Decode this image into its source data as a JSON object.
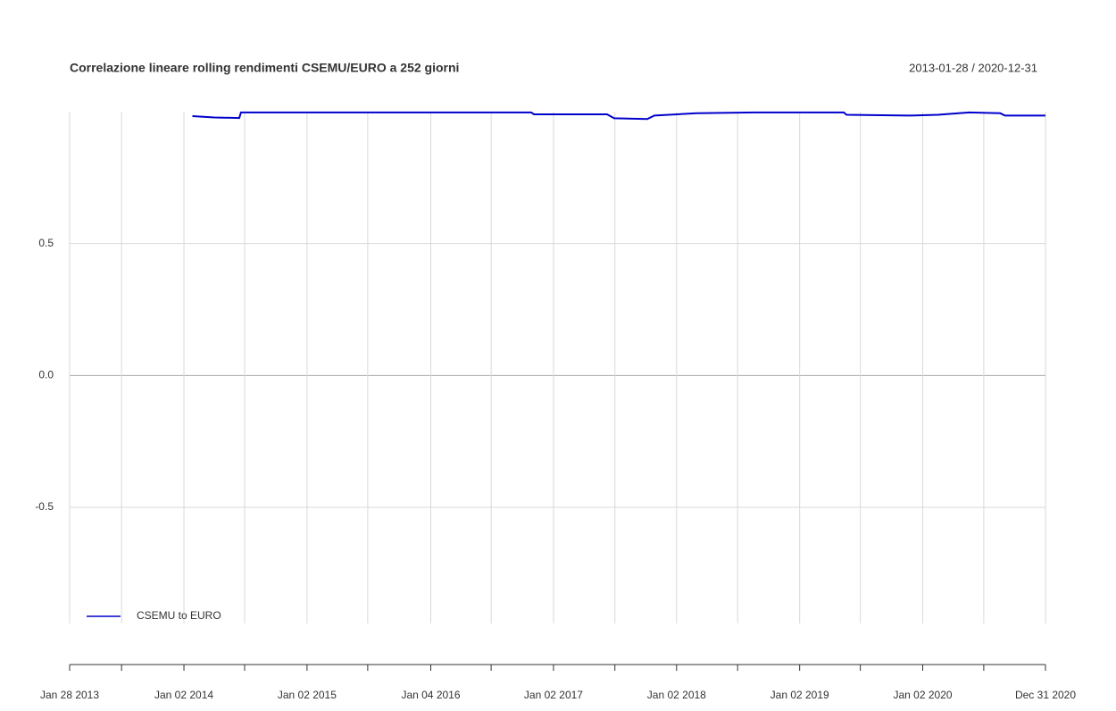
{
  "chart_data": {
    "type": "line",
    "title": "Correlazione lineare rolling rendimenti CSEMU/EURO a 252 giorni",
    "subtitle": "2013-01-28 / 2020-12-31",
    "xlim": [
      "2013-01-28",
      "2020-12-31"
    ],
    "xticks": [
      {
        "value": "2013-01-28",
        "label": "Jan 28 2013"
      },
      {
        "value": "2014-01-02",
        "label": "Jan 02 2014"
      },
      {
        "value": "2015-01-02",
        "label": "Jan 02 2015"
      },
      {
        "value": "2016-01-04",
        "label": "Jan 04 2016"
      },
      {
        "value": "2017-01-02",
        "label": "Jan 02 2017"
      },
      {
        "value": "2018-01-02",
        "label": "Jan 02 2018"
      },
      {
        "value": "2019-01-02",
        "label": "Jan 02 2019"
      },
      {
        "value": "2020-01-02",
        "label": "Jan 02 2020"
      },
      {
        "value": "2020-12-31",
        "label": "Dec 31 2020"
      }
    ],
    "xminorticks": [
      "2013-07-01",
      "2014-07-01",
      "2015-07-01",
      "2016-07-01",
      "2017-07-03",
      "2018-07-02",
      "2019-07-01",
      "2020-07-01"
    ],
    "ylim": [
      -0.94,
      1.0
    ],
    "yticks": [
      -0.5,
      {
        "value": 0,
        "label": "0.0"
      },
      0.5
    ],
    "grid": true,
    "legend": "bottom-left",
    "x": [
      "2014-01-27",
      "2014-04-02",
      "2014-06-15",
      "2014-06-20",
      "2016-10-28",
      "2016-11-05",
      "2017-06-10",
      "2017-07-01",
      "2017-10-07",
      "2017-10-28",
      "2018-03-02",
      "2018-08-21",
      "2019-05-13",
      "2019-05-21",
      "2019-11-28",
      "2020-02-16",
      "2020-05-19",
      "2020-08-19",
      "2020-09-02",
      "2020-12-31"
    ],
    "series": [
      {
        "name": "CSEMU to EURO",
        "color": "#0000cc",
        "values": [
          0.983,
          0.978,
          0.976,
          0.997,
          0.997,
          0.99,
          0.99,
          0.975,
          0.972,
          0.985,
          0.994,
          0.997,
          0.997,
          0.988,
          0.985,
          0.988,
          0.997,
          0.994,
          0.985,
          0.985
        ]
      }
    ]
  }
}
